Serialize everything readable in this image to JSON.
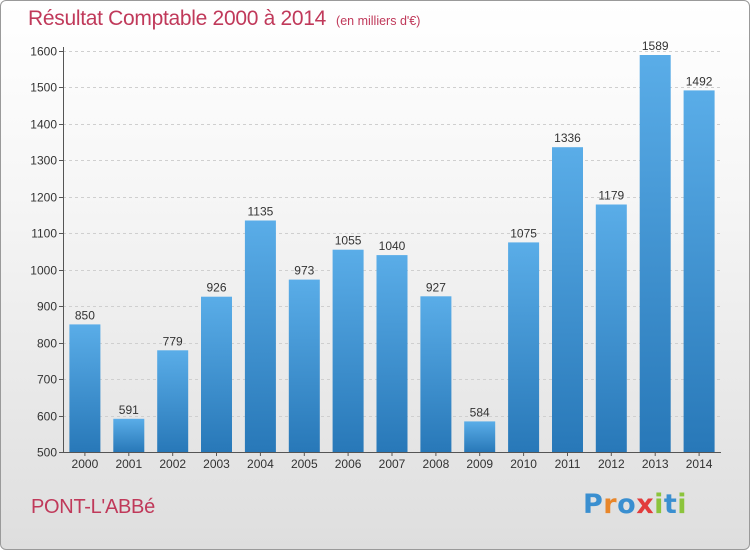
{
  "chart_data": {
    "type": "bar",
    "title": "Résultat Comptable 2000 à 2014",
    "unit_label": "(en milliers d'€)",
    "categories": [
      "2000",
      "2001",
      "2002",
      "2003",
      "2004",
      "2005",
      "2006",
      "2007",
      "2008",
      "2009",
      "2010",
      "2011",
      "2012",
      "2013",
      "2014"
    ],
    "values": [
      850,
      591,
      779,
      926,
      1135,
      973,
      1055,
      1040,
      927,
      584,
      1075,
      1336,
      1179,
      1589,
      1492
    ],
    "ylim": [
      500,
      1600
    ],
    "yticks": [
      500,
      600,
      700,
      800,
      900,
      1000,
      1100,
      1200,
      1300,
      1400,
      1500,
      1600
    ],
    "grid": true,
    "bar_color_top": "#5aade8",
    "bar_color_bottom": "#2878b8",
    "title_color": "#c0395a"
  },
  "commune": "PONT-L'ABBé",
  "brand": {
    "text": "Proxiti",
    "letter_colors": [
      "#3a8fd0",
      "#e8862a",
      "#3a8fd0",
      "#e23c3c",
      "#8cc43c",
      "#3a8fd0",
      "#8cc43c"
    ]
  }
}
